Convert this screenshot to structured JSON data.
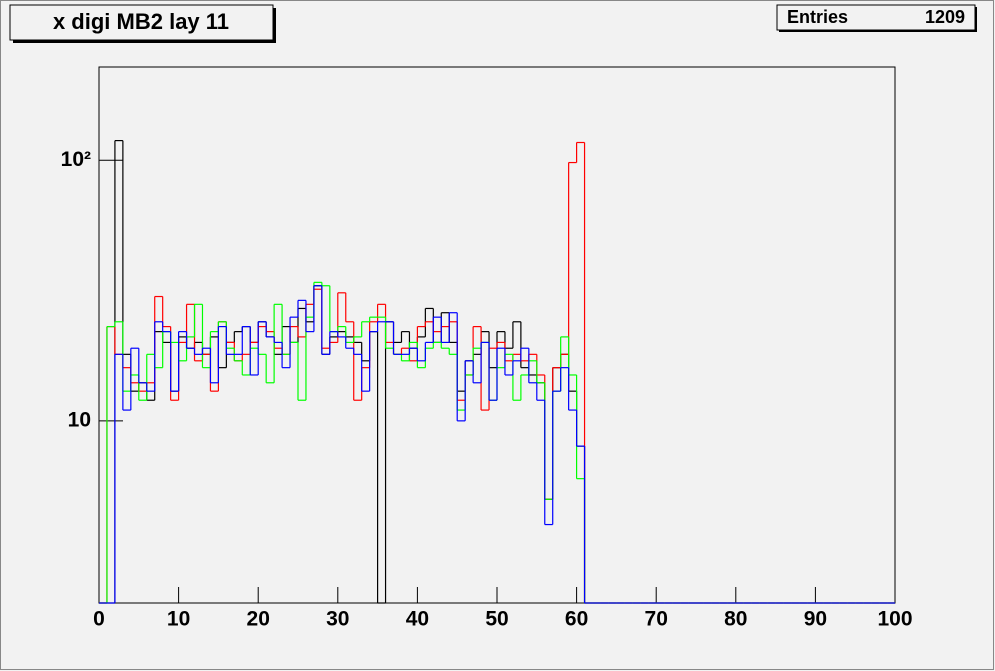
{
  "chart_data": {
    "type": "histogram",
    "title": "x digi MB2 lay 11",
    "stats": [
      {
        "label": "Entries",
        "value": 1209
      }
    ],
    "log_y": true,
    "grid": false,
    "xlim": [
      0,
      100
    ],
    "ylim": [
      2,
      228
    ],
    "xticks": [
      0,
      10,
      20,
      30,
      40,
      50,
      60,
      70,
      80,
      90,
      100
    ],
    "yticks": [
      10,
      {
        "value": 100,
        "label": "10²"
      }
    ],
    "bins": [
      0,
      1,
      2,
      3,
      4,
      5,
      6,
      7,
      8,
      9,
      10,
      11,
      12,
      13,
      14,
      15,
      16,
      17,
      18,
      19,
      20,
      21,
      22,
      23,
      24,
      25,
      26,
      27,
      28,
      29,
      30,
      31,
      32,
      33,
      34,
      35,
      36,
      37,
      38,
      39,
      40,
      41,
      42,
      43,
      44,
      45,
      46,
      47,
      48,
      49,
      50,
      51,
      52,
      53,
      54,
      55,
      56,
      57,
      58,
      59,
      60,
      61,
      62,
      63,
      64,
      65,
      66,
      67,
      68,
      69,
      70,
      71,
      72,
      73,
      74,
      75,
      76,
      77,
      78,
      79,
      80,
      81,
      82,
      83,
      84,
      85,
      86,
      87,
      88,
      89,
      90,
      91,
      92,
      93,
      94,
      95,
      96,
      97,
      98,
      99,
      100
    ],
    "series": [
      {
        "color": "#000000",
        "values": [
          0,
          0,
          119,
          18,
          13,
          14,
          12,
          22,
          20,
          13,
          21,
          19,
          20,
          18,
          21,
          16,
          20,
          22,
          23,
          20,
          24,
          21,
          18,
          23,
          20,
          27,
          24,
          33,
          18,
          21,
          22,
          21,
          20,
          17,
          22,
          0,
          24,
          20,
          22,
          19,
          21,
          27,
          20,
          26,
          20,
          13,
          17,
          18,
          22,
          16,
          22,
          19,
          24,
          16,
          15,
          14,
          5,
          16,
          18,
          13,
          8,
          0,
          0,
          0,
          0,
          0,
          0,
          0,
          0,
          0,
          0,
          0,
          0,
          0,
          0,
          0,
          0,
          0,
          0,
          0,
          0,
          0,
          0,
          0,
          0,
          0,
          0,
          0,
          0,
          0,
          0,
          0,
          0,
          0,
          0,
          0,
          0,
          0,
          0,
          0
        ]
      },
      {
        "color": "#ff0000",
        "values": [
          0,
          23,
          18,
          16,
          14,
          13,
          14,
          30,
          23,
          12,
          20,
          28,
          17,
          18,
          13,
          24,
          20,
          17,
          18,
          20,
          23,
          22,
          19,
          18,
          23,
          21,
          28,
          32,
          19,
          20,
          31,
          24,
          12,
          16,
          24,
          28,
          20,
          18,
          19,
          17,
          23,
          24,
          22,
          23,
          24,
          12,
          15,
          23,
          11,
          19,
          20,
          17,
          18,
          17,
          18,
          15,
          5,
          16,
          18,
          98,
          117,
          0,
          0,
          0,
          0,
          0,
          0,
          0,
          0,
          0,
          0,
          0,
          0,
          0,
          0,
          0,
          0,
          0,
          0,
          0,
          0,
          0,
          0,
          0,
          0,
          0,
          0,
          0,
          0,
          0,
          0,
          0,
          0,
          0,
          0,
          0,
          0,
          0,
          0,
          0
        ]
      },
      {
        "color": "#00ff00",
        "values": [
          0,
          23,
          24,
          13,
          15,
          12,
          18,
          16,
          22,
          20,
          17,
          21,
          28,
          16,
          22,
          24,
          19,
          17,
          15,
          19,
          18,
          14,
          28,
          18,
          20,
          12,
          25,
          34,
          33,
          22,
          23,
          20,
          21,
          24,
          25,
          25,
          19,
          18,
          17,
          20,
          16,
          19,
          20,
          19,
          18,
          11,
          15,
          19,
          20,
          12,
          16,
          18,
          12,
          15,
          17,
          14,
          5,
          13,
          21,
          15,
          6,
          0,
          0,
          0,
          0,
          0,
          0,
          0,
          0,
          0,
          0,
          0,
          0,
          0,
          0,
          0,
          0,
          0,
          0,
          0,
          0,
          0,
          0,
          0,
          0,
          0,
          0,
          0,
          0,
          0,
          0,
          0,
          0,
          0,
          0,
          0,
          0,
          0,
          0,
          0
        ]
      },
      {
        "color": "#0000ff",
        "values": [
          0,
          0,
          18,
          11,
          19,
          14,
          13,
          24,
          22,
          13,
          22,
          19,
          18,
          19,
          14,
          23,
          18,
          18,
          23,
          15,
          24,
          21,
          20,
          16,
          25,
          29,
          22,
          33,
          18,
          22,
          21,
          19,
          18,
          13,
          22,
          24,
          24,
          18,
          18,
          19,
          17,
          20,
          25,
          20,
          26,
          10,
          17,
          14,
          20,
          12,
          19,
          15,
          17,
          19,
          14,
          12,
          4,
          13,
          16,
          11,
          8,
          0,
          0,
          0,
          0,
          0,
          0,
          0,
          0,
          0,
          0,
          0,
          0,
          0,
          0,
          0,
          0,
          0,
          0,
          0,
          0,
          0,
          0,
          0,
          0,
          0,
          0,
          0,
          0,
          0,
          0,
          0,
          0,
          0,
          0,
          0,
          0,
          0,
          0,
          0
        ]
      }
    ]
  }
}
